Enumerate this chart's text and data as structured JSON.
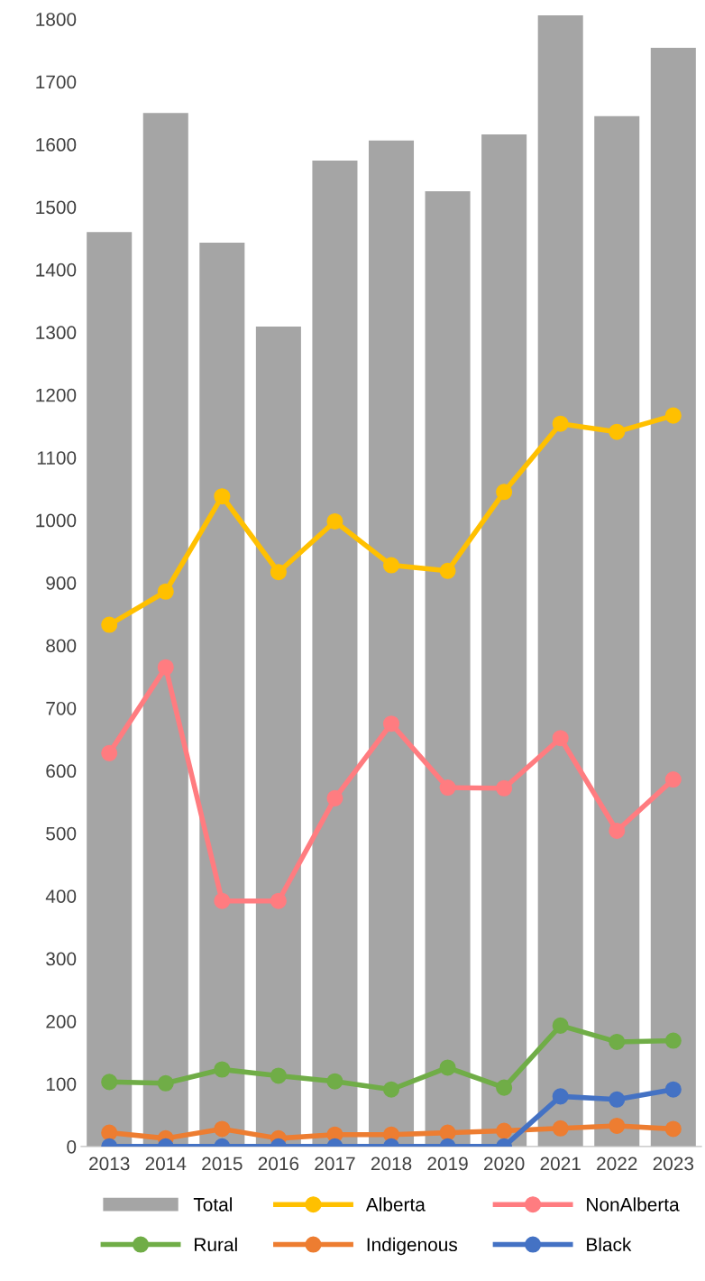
{
  "chart_data": {
    "type": "bar",
    "categories": [
      "2013",
      "2014",
      "2015",
      "2016",
      "2017",
      "2018",
      "2019",
      "2020",
      "2021",
      "2022",
      "2023"
    ],
    "series": [
      {
        "name": "Total",
        "color": "#a5a5a5",
        "values": [
          1460,
          1650,
          1443,
          1309,
          1574,
          1606,
          1525,
          1616,
          1806,
          1645,
          1754
        ]
      },
      {
        "name": "Alberta",
        "type": "line",
        "color": "#ffc000",
        "values": [
          833,
          886,
          1038,
          917,
          998,
          928,
          919,
          1045,
          1154,
          1141,
          1167
        ]
      },
      {
        "name": "NonAlberta",
        "type": "line",
        "color": "#ff7c80",
        "values": [
          628,
          765,
          392,
          392,
          556,
          675,
          573,
          572,
          652,
          504,
          586
        ]
      },
      {
        "name": "Rural",
        "type": "line",
        "color": "#70ad47",
        "values": [
          103,
          101,
          123,
          113,
          104,
          91,
          126,
          94,
          193,
          167,
          169
        ]
      },
      {
        "name": "Indigenous",
        "type": "line",
        "color": "#ed7d31",
        "values": [
          22,
          13,
          28,
          13,
          19,
          19,
          22,
          25,
          29,
          33,
          28
        ]
      },
      {
        "name": "Black",
        "type": "line",
        "color": "#4472c4",
        "values": [
          0,
          0,
          0,
          0,
          0,
          0,
          0,
          0,
          80,
          75,
          91
        ]
      }
    ],
    "ylim": [
      0,
      1810
    ],
    "yticks": [
      0,
      100,
      200,
      300,
      400,
      500,
      600,
      700,
      800,
      900,
      1000,
      1100,
      1200,
      1300,
      1400,
      1500,
      1600,
      1700,
      1800
    ],
    "grid": false,
    "legend": "bottom",
    "marker": "circle",
    "line_style": "solid"
  }
}
